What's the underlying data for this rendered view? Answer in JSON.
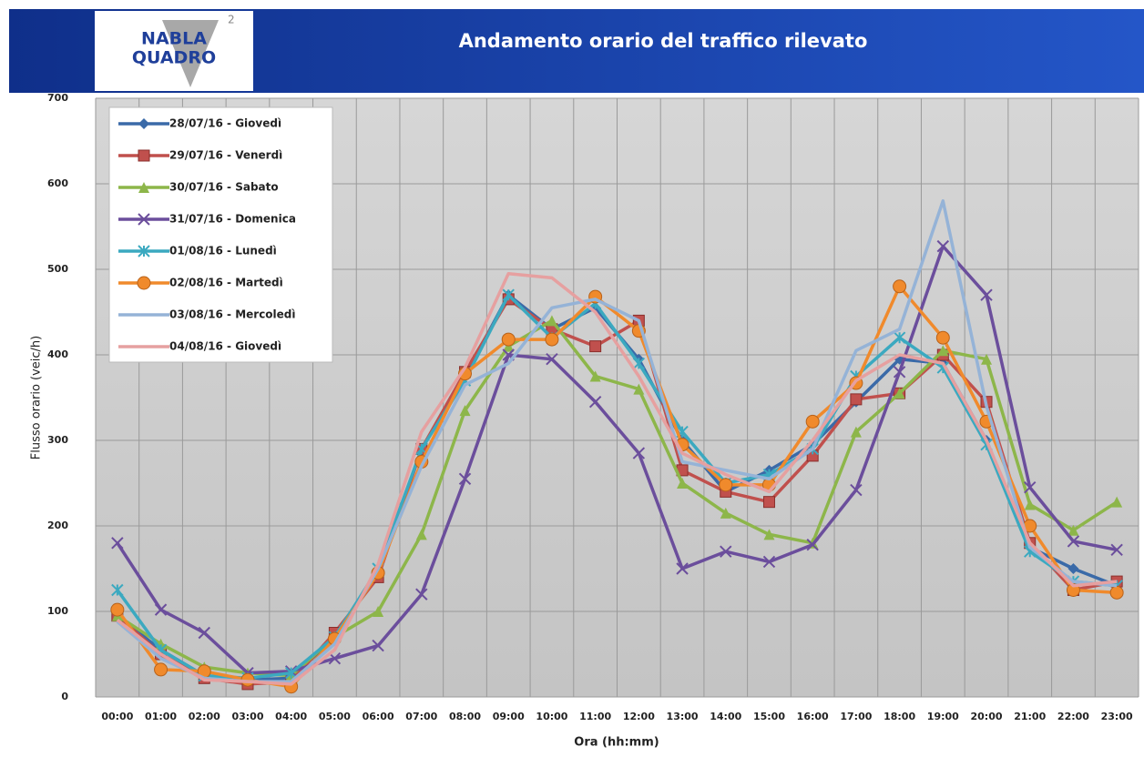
{
  "logo": {
    "line1": "NABLA",
    "line2": "QUADRO",
    "sup": "2"
  },
  "chart_data": {
    "type": "line",
    "title": "Andamento orario del traffico rilevato",
    "y_label": "Flusso orario (veic/h)",
    "x_label": "Ora (hh:mm)",
    "categories": [
      "00:00",
      "01:00",
      "02:00",
      "03:00",
      "04:00",
      "05:00",
      "06:00",
      "07:00",
      "08:00",
      "09:00",
      "10:00",
      "11:00",
      "12:00",
      "13:00",
      "14:00",
      "15:00",
      "16:00",
      "17:00",
      "18:00",
      "19:00",
      "20:00",
      "21:00",
      "22:00",
      "23:00"
    ],
    "ylim": [
      0,
      700
    ],
    "yticks": [
      0,
      100,
      200,
      300,
      400,
      500,
      600,
      700
    ],
    "grid": true,
    "legend": "upper left",
    "series": [
      {
        "name": "28/07/16 - Giovedì",
        "color": "#3a6aa8",
        "marker": "diamond",
        "values": [
          95,
          55,
          25,
          20,
          22,
          70,
          145,
          290,
          375,
          470,
          430,
          455,
          395,
          300,
          240,
          265,
          295,
          345,
          395,
          390,
          300,
          175,
          150,
          130
        ]
      },
      {
        "name": "29/07/16 - Venerdì",
        "color": "#c0504d",
        "marker": "square",
        "values": [
          95,
          50,
          22,
          15,
          18,
          75,
          140,
          290,
          380,
          465,
          430,
          410,
          440,
          265,
          240,
          228,
          282,
          348,
          355,
          400,
          345,
          180,
          125,
          135
        ]
      },
      {
        "name": "30/07/16 - Sabato",
        "color": "#8db64a",
        "marker": "triangle",
        "values": [
          95,
          62,
          35,
          28,
          25,
          70,
          100,
          190,
          335,
          410,
          440,
          375,
          360,
          250,
          215,
          190,
          180,
          310,
          355,
          405,
          395,
          225,
          195,
          228
        ]
      },
      {
        "name": "31/07/16 - Domenica",
        "color": "#6b4e9c",
        "marker": "x",
        "values": [
          180,
          102,
          75,
          28,
          30,
          45,
          60,
          120,
          255,
          400,
          395,
          345,
          285,
          150,
          170,
          158,
          178,
          242,
          380,
          527,
          470,
          245,
          182,
          172
        ]
      },
      {
        "name": "01/08/16 - Lunedì",
        "color": "#3ba9c0",
        "marker": "star",
        "values": [
          125,
          55,
          25,
          22,
          28,
          70,
          150,
          290,
          370,
          470,
          420,
          460,
          390,
          310,
          250,
          260,
          290,
          375,
          420,
          385,
          295,
          170,
          135,
          130
        ]
      },
      {
        "name": "02/08/16 - Martedì",
        "color": "#f08a2c",
        "marker": "circle",
        "values": [
          102,
          32,
          30,
          20,
          12,
          68,
          145,
          275,
          378,
          418,
          418,
          468,
          428,
          295,
          248,
          248,
          322,
          367,
          480,
          420,
          322,
          200,
          125,
          122
        ]
      },
      {
        "name": "03/08/16 - Mercoledì",
        "color": "#95b3d7",
        "marker": "none",
        "values": [
          88,
          45,
          22,
          18,
          18,
          62,
          150,
          270,
          365,
          390,
          455,
          465,
          440,
          275,
          265,
          255,
          290,
          405,
          430,
          580,
          340,
          175,
          135,
          130
        ]
      },
      {
        "name": "04/08/16 - Giovedì",
        "color": "#e6a0a0",
        "marker": "none",
        "values": [
          90,
          50,
          20,
          18,
          15,
          55,
          155,
          310,
          385,
          495,
          490,
          450,
          375,
          285,
          260,
          240,
          300,
          370,
          400,
          390,
          300,
          180,
          130,
          135
        ]
      }
    ]
  }
}
